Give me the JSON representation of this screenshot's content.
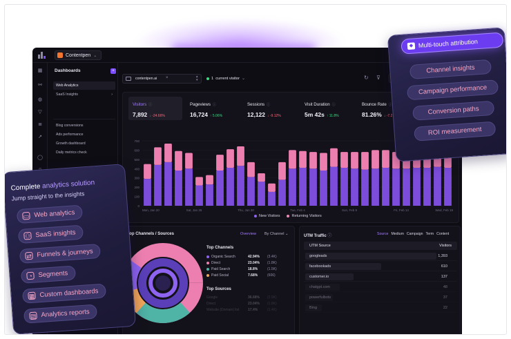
{
  "app": {
    "workspace": "Contentpen"
  },
  "sidebar": {
    "title": "Dashboards",
    "items": [
      {
        "label": "Web Analytics",
        "active": true
      },
      {
        "label": "SaaS Insights",
        "arrow": "›"
      },
      {
        "label": "Blog conversions"
      },
      {
        "label": "Ads performance"
      },
      {
        "label": "Growth dashboard"
      },
      {
        "label": "Daily metrics check"
      }
    ]
  },
  "filter": {
    "site": "contentpen.ai",
    "live_count": "1",
    "live_label": "current visitor"
  },
  "toolbar": {
    "share_label": "Se"
  },
  "metrics": [
    {
      "label": "Visitors",
      "value": "7,892",
      "change": "↓ -24.66%",
      "dir": "down"
    },
    {
      "label": "Pageviews",
      "value": "16,724",
      "change": "↑ 5.06%",
      "dir": "up"
    },
    {
      "label": "Sessions",
      "value": "12,122",
      "change": "↓ -9.12%",
      "dir": "down"
    },
    {
      "label": "Visit Duration",
      "value": "5m 42s",
      "change": "↑ 11.8%",
      "dir": "up"
    },
    {
      "label": "Bounce Rate",
      "value": "81.26%",
      "change": "↓ -7.2",
      "dir": "down"
    }
  ],
  "chart_data": {
    "type": "bar",
    "stacked": true,
    "categories": [
      "Mon, Jan 20",
      "",
      "",
      "",
      "",
      "Sat, Jan 25",
      "",
      "",
      "",
      "Thu, Jan 30",
      "",
      "",
      "",
      "",
      "Tue, Feb 4",
      "",
      "",
      "",
      "",
      "Sun, Feb 9",
      "",
      "",
      "",
      "",
      "Fri, Feb 14",
      "",
      "",
      "",
      "",
      "Wed, Feb 19"
    ],
    "tick_labels": [
      "Mon, Jan 20",
      "Sat, Jan 25",
      "Thu, Jan 30",
      "Tue, Feb 4",
      "Sun, Feb 9",
      "Fri, Feb 14",
      "Wed, Feb 19"
    ],
    "series": [
      {
        "name": "New Visitors",
        "color": "#7c4ddb",
        "values": [
          290,
          440,
          470,
          380,
          400,
          220,
          230,
          380,
          410,
          430,
          310,
          260,
          150,
          280,
          400,
          410,
          400,
          380,
          420,
          410,
          400,
          390,
          400,
          410,
          400,
          400,
          410,
          410,
          420,
          410
        ]
      },
      {
        "name": "Returning Visitors",
        "color": "#ec7fb0",
        "values": [
          160,
          190,
          200,
          210,
          170,
          90,
          100,
          170,
          200,
          210,
          160,
          90,
          90,
          190,
          200,
          180,
          180,
          190,
          200,
          170,
          180,
          190,
          200,
          190,
          180,
          180,
          190,
          200,
          200,
          180
        ]
      }
    ],
    "yticks": [
      "700",
      "600",
      "500",
      "400",
      "300",
      "200",
      "100",
      "0"
    ],
    "ylim": [
      0,
      700
    ]
  },
  "chart_bars": [
    {
      "new": 200,
      "ret": 75
    },
    {
      "new": 300,
      "ret": 110
    },
    {
      "new": 320,
      "ret": 150
    },
    {
      "new": 250,
      "ret": 120
    },
    {
      "new": 300,
      "ret": 120
    },
    {
      "new": 130,
      "ret": 60
    },
    {
      "new": 170,
      "ret": 60
    },
    {
      "new": 250,
      "ret": 110
    },
    {
      "new": 280,
      "ret": 130
    },
    {
      "new": 300,
      "ret": 130
    },
    {
      "new": 200,
      "ret": 100
    },
    {
      "new": 150,
      "ret": 75
    },
    {
      "new": 70,
      "ret": 50
    },
    {
      "new": 170,
      "ret": 160
    },
    {
      "new": 250,
      "ret": 160
    },
    {
      "new": 260,
      "ret": 160
    },
    {
      "new": 270,
      "ret": 130
    },
    {
      "new": 260,
      "ret": 140
    },
    {
      "new": 300,
      "ret": 140
    },
    {
      "new": 280,
      "ret": 130
    }
  ],
  "legend": [
    {
      "label": "New Visitors",
      "color": "#8d63f0"
    },
    {
      "label": "Returning Visitors",
      "color": "#f08ab8"
    }
  ],
  "channels": {
    "title": "Top Channels / Sources",
    "overview": "Overview",
    "by_channel": "By Channel ⌄",
    "top_channels_title": "Top Channels",
    "rows": [
      {
        "label": "Organic Search",
        "pct": "42.94%",
        "n": "(3.4K)",
        "color": "#8d63f0"
      },
      {
        "label": "Direct",
        "pct": "23.04%",
        "n": "(1.8K)",
        "color": "#ec7fb0"
      },
      {
        "label": "Paid Search",
        "pct": "18.8%",
        "n": "(1.5K)",
        "color": "#4fb3a6"
      },
      {
        "label": "Paid Social",
        "pct": "7.68%",
        "n": "(606)",
        "color": "#f2a65a"
      }
    ],
    "top_sources_title": "Top Sources",
    "source_rows": [
      {
        "label": "Google",
        "pct": "36.68%",
        "n": "(2.9K)"
      },
      {
        "label": "Direct",
        "pct": "23.04%",
        "n": "(1.8K)"
      },
      {
        "label": "Website (Domain) list",
        "pct": "17.4%",
        "n": "(1.4K)"
      }
    ]
  },
  "utm": {
    "title": "UTM Traffic",
    "tabs": [
      "Source",
      "Medium",
      "Campaign",
      "Term",
      "Content"
    ],
    "col_source": "UTM Source",
    "col_visitors": "Visitors",
    "rows": [
      {
        "source": "googleads",
        "visitors": "1,393",
        "share": 0.95
      },
      {
        "source": "facebookads",
        "visitors": "610",
        "share": 0.55
      },
      {
        "source": "customer.io",
        "visitors": "137",
        "share": 0.35
      },
      {
        "source": "chatgpt.com",
        "visitors": "48",
        "share": 0.25
      },
      {
        "source": "powerfulbots",
        "visitors": "37",
        "share": 0.2
      },
      {
        "source": "Bing",
        "visitors": "22",
        "share": 0.12
      }
    ]
  },
  "left_panel": {
    "heading_start": "Complete ",
    "heading_accent": "analytics solution",
    "subheading": "Jump straight to the insights",
    "items": [
      {
        "label": "Web analytics",
        "icon": "▭"
      },
      {
        "label": "SaaS insights",
        "icon": "⚇"
      },
      {
        "label": "Funnels & journeys",
        "icon": "⇄"
      },
      {
        "label": "Segments",
        "icon": "◔"
      },
      {
        "label": "Custom dashboards",
        "icon": "▦"
      },
      {
        "label": "Analytics reports",
        "icon": "▤"
      }
    ]
  },
  "right_panel": {
    "heading": "Multi-touch attribution",
    "items": [
      "Channel insights",
      "Campaign performance",
      "Conversion paths",
      "ROI measurement"
    ]
  }
}
